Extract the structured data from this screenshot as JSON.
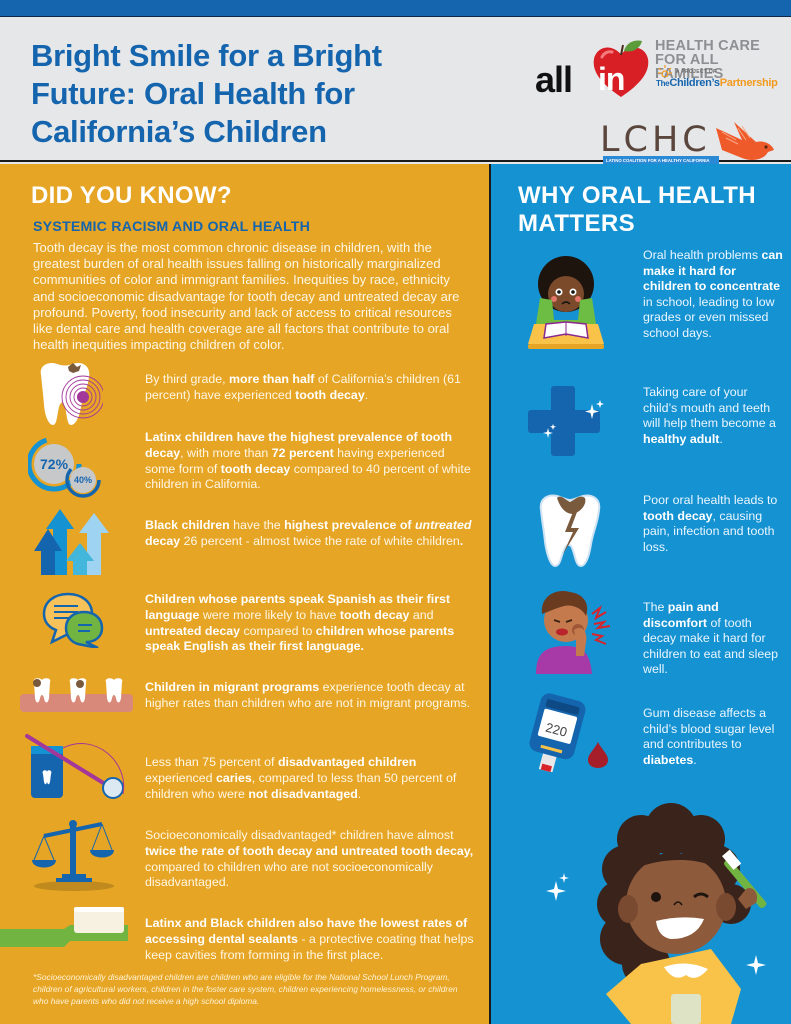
{
  "header": {
    "title": "Bright Smile for a Bright Future: Oral Health for California’s Children",
    "logos": {
      "allin": {
        "all": "all",
        "in": "in"
      },
      "hcaf_line1": "HEALTH CARE",
      "hcaf_line2": "FOR ALL FAMILIES",
      "project_of": "A PROJECT OF",
      "tcp_the": "The",
      "tcp_childrens": "Children’s",
      "tcp_partnership": "Partnership",
      "lchc": "LCHC",
      "lchc_full": "LATINO COALITION FOR A HEALTHY CALIFORNIA"
    }
  },
  "colors": {
    "brand_blue": "#1565ae",
    "left_panel": "#e6a524",
    "right_panel": "#1592d2",
    "header_bg": "#e6e7e9",
    "tcp_orange": "#f39a1e",
    "lchc_brown": "#5a463c",
    "lchc_bird": "#ef5a2a"
  },
  "left": {
    "heading": "DID YOU KNOW?",
    "subheading": "SYSTEMIC RACISM AND ORAL HEALTH",
    "intro": "Tooth decay is the most common chronic disease in children, with the greatest burden of oral health issues falling on historically marginalized communities of color and immigrant families. Inequities by race, ethnicity and socioeconomic disadvantage for tooth decay and untreated decay are profound. Poverty, food insecurity and lack of access to critical resources like dental care and health coverage are all factors that contribute to oral health inequities impacting children of color.",
    "facts": [
      {
        "icon": "decayed-tooth-icon",
        "parts": [
          {
            "t": "By third grade, "
          },
          {
            "t": "more than half",
            "b": true
          },
          {
            "t": " of California’s children (61 percent) have experienced "
          },
          {
            "t": "tooth decay",
            "b": true
          },
          {
            "t": "."
          }
        ]
      },
      {
        "icon": "percent-circles-icon",
        "stat_a": "72%",
        "stat_b": "40%",
        "parts": [
          {
            "t": "Latinx children have the highest prevalence of tooth decay",
            "b": true
          },
          {
            "t": ", with more than "
          },
          {
            "t": "72 percent",
            "b": true
          },
          {
            "t": " having experienced some form of "
          },
          {
            "t": "tooth decay",
            "b": true
          },
          {
            "t": " compared to 40 percent of white children in California."
          }
        ]
      },
      {
        "icon": "rising-arrows-icon",
        "parts": [
          {
            "t": "Black children",
            "b": true
          },
          {
            "t": " have the "
          },
          {
            "t": "highest prevalence of ",
            "b": true
          },
          {
            "t": "untreated",
            "b": true,
            "i": true
          },
          {
            "t": " decay",
            "b": true
          },
          {
            "t": " 26 percent - almost twice the rate of white children"
          },
          {
            "t": ".",
            "b": true
          }
        ]
      },
      {
        "icon": "speech-bubbles-icon",
        "parts": [
          {
            "t": "Children whose parents speak Spanish as their first language",
            "b": true
          },
          {
            "t": " were more likely to have "
          },
          {
            "t": "tooth decay",
            "b": true
          },
          {
            "t": " and "
          },
          {
            "t": "untreated decay",
            "b": true
          },
          {
            "t": " compared to "
          },
          {
            "t": "children whose parents speak English as their first language.",
            "b": true
          }
        ]
      },
      {
        "icon": "teeth-row-icon",
        "parts": [
          {
            "t": "Children in migrant programs",
            "b": true
          },
          {
            "t": " experience tooth decay at higher rates than children who are not in migrant programs."
          }
        ]
      },
      {
        "icon": "floss-mirror-icon",
        "parts": [
          {
            "t": "Less than 75 percent of "
          },
          {
            "t": "disadvantaged children",
            "b": true
          },
          {
            "t": " experienced "
          },
          {
            "t": "caries",
            "b": true
          },
          {
            "t": ", compared to less than 50 percent of children who were "
          },
          {
            "t": "not disadvantaged",
            "b": true
          },
          {
            "t": "."
          }
        ]
      },
      {
        "icon": "scales-icon",
        "parts": [
          {
            "t": "Socioeconomically disadvantaged* children have almost "
          },
          {
            "t": "twice the rate of tooth decay and untreated tooth decay,",
            "b": true
          },
          {
            "t": " compared to children who are not socioeconomically disadvantaged."
          }
        ]
      },
      {
        "icon": "toothbrush-icon",
        "parts": [
          {
            "t": "Latinx and Black children also have the lowest rates of accessing dental sealants",
            "b": true
          },
          {
            "t": " - a protective coating that helps keep cavities from forming in the first place."
          }
        ]
      }
    ],
    "footnote": "*Socioeconomically disadvantaged children are children who are eligible for the National School Lunch Program, children of agricultural workers, children in the foster care system, children experiencing homelessness, or children who have parents who did not receive a high school diploma."
  },
  "right": {
    "heading": "WHY ORAL HEALTH MATTERS",
    "facts": [
      {
        "icon": "child-studying-icon",
        "parts": [
          {
            "t": "Oral health problems "
          },
          {
            "t": "can make it hard for children to concentrate",
            "b": true
          },
          {
            "t": " in school, leading to low grades or even missed school days."
          }
        ]
      },
      {
        "icon": "health-cross-icon",
        "parts": [
          {
            "t": "Taking care of your child’s mouth and teeth will help them become a "
          },
          {
            "t": "healthy adult",
            "b": true
          },
          {
            "t": "."
          }
        ]
      },
      {
        "icon": "cracked-tooth-icon",
        "parts": [
          {
            "t": "Poor oral health leads to "
          },
          {
            "t": "tooth decay",
            "b": true
          },
          {
            "t": ", causing pain, infection and tooth loss."
          }
        ]
      },
      {
        "icon": "toothache-child-icon",
        "parts": [
          {
            "t": "The "
          },
          {
            "t": "pain and discomfort",
            "b": true
          },
          {
            "t": " of tooth decay make it hard for children to eat and sleep well."
          }
        ]
      },
      {
        "icon": "glucose-meter-icon",
        "meter_reading": "220",
        "parts": [
          {
            "t": "Gum disease affects a child’s blood sugar level and contributes to "
          },
          {
            "t": "diabetes",
            "b": true
          },
          {
            "t": "."
          }
        ]
      }
    ],
    "illustration": "smiling-girl-toothbrush-illustration"
  }
}
